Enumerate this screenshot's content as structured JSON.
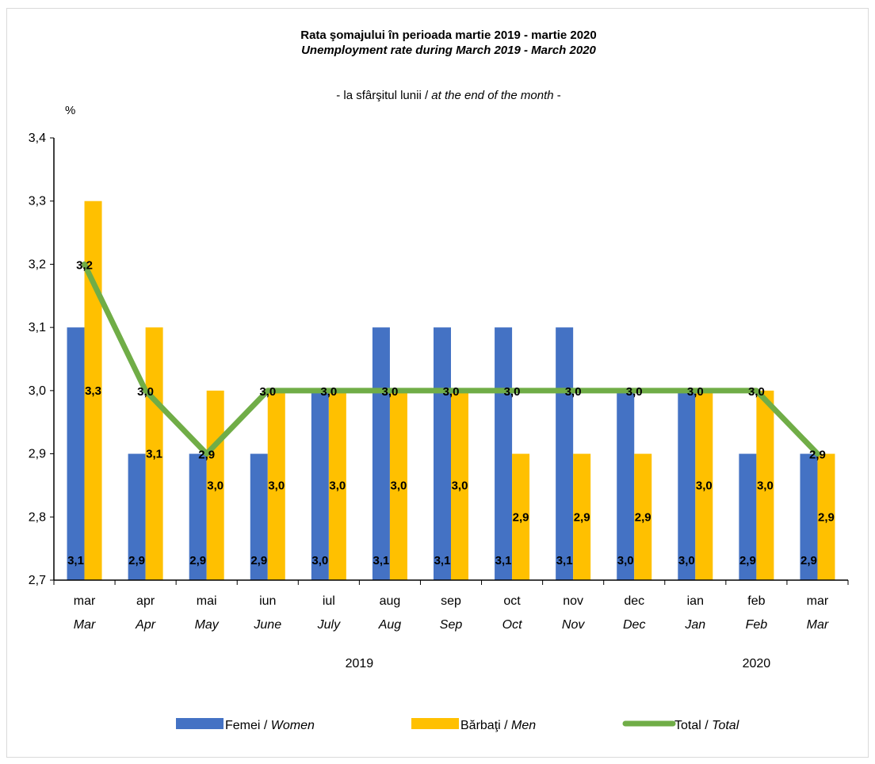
{
  "chart_data": {
    "type": "bar+line",
    "title": "Rata şomajului în perioada martie 2019 - martie 2020",
    "title_en": "Unemployment rate during March 2019 - March 2020",
    "subtitle_ro": "- la sfârşitul lunii / ",
    "subtitle_en": "at the end of the month",
    "subtitle_tail": " -",
    "ylabel": "%",
    "ylim": [
      2.7,
      3.4
    ],
    "yticks": [
      "2,7",
      "2,8",
      "2,9",
      "3,0",
      "3,1",
      "3,2",
      "3,3",
      "3,4"
    ],
    "ytick_values": [
      2.7,
      2.8,
      2.9,
      3.0,
      3.1,
      3.2,
      3.3,
      3.4
    ],
    "categories_ro": [
      "mar",
      "apr",
      "mai",
      "iun",
      "iul",
      "aug",
      "sep",
      "oct",
      "nov",
      "dec",
      "ian",
      "feb",
      "mar"
    ],
    "categories_en": [
      "Mar",
      "Apr",
      "May",
      "June",
      "July",
      "Aug",
      "Sep",
      "Oct",
      "Nov",
      "Dec",
      "Jan",
      "Feb",
      "Mar"
    ],
    "year_groups": [
      {
        "label": "2019",
        "start": 0,
        "end": 9
      },
      {
        "label": "2020",
        "start": 10,
        "end": 12
      }
    ],
    "series": [
      {
        "name_ro": "Femei / ",
        "name_en": "Women",
        "kind": "bar",
        "color": "#4472C4",
        "values": [
          3.1,
          2.9,
          2.9,
          2.9,
          3.0,
          3.1,
          3.1,
          3.1,
          3.1,
          3.0,
          3.0,
          2.9,
          2.9
        ],
        "labels": [
          "3,1",
          "2,9",
          "2,9",
          "2,9",
          "3,0",
          "3,1",
          "3,1",
          "3,1",
          "3,1",
          "3,0",
          "3,0",
          "2,9",
          "2,9"
        ]
      },
      {
        "name_ro": "Bărbaţi / ",
        "name_en": "Men",
        "kind": "bar",
        "color": "#FFC000",
        "values": [
          3.3,
          3.1,
          3.0,
          3.0,
          3.0,
          3.0,
          3.0,
          2.9,
          2.9,
          2.9,
          3.0,
          3.0,
          2.9
        ],
        "labels": [
          "3,3",
          "3,1",
          "3,0",
          "3,0",
          "3,0",
          "3,0",
          "3,0",
          "2,9",
          "2,9",
          "2,9",
          "3,0",
          "3,0",
          "2,9"
        ]
      },
      {
        "name_ro": "Total / ",
        "name_en": "Total",
        "kind": "line",
        "color": "#70AD47",
        "values": [
          3.2,
          3.0,
          2.9,
          3.0,
          3.0,
          3.0,
          3.0,
          3.0,
          3.0,
          3.0,
          3.0,
          3.0,
          2.9
        ],
        "labels": [
          "3,2",
          "3,0",
          "2,9",
          "3,0",
          "3,0",
          "3,0",
          "3,0",
          "3,0",
          "3,0",
          "3,0",
          "3,0",
          "3,0",
          "2,9"
        ]
      }
    ],
    "grid": false,
    "legend_position": "bottom"
  }
}
